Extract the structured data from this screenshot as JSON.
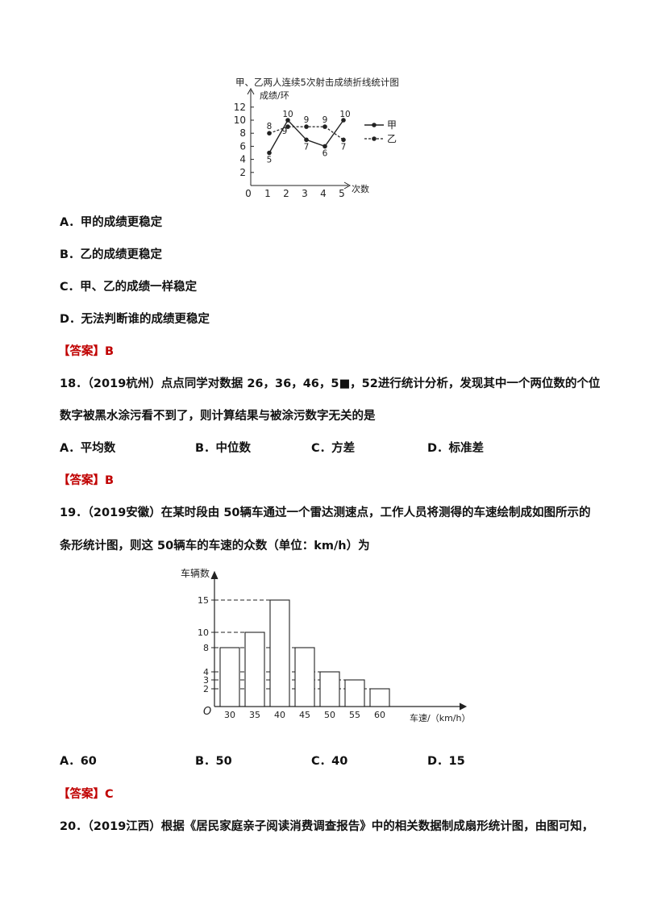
{
  "chart1": {
    "title": "甲、乙两人连续5次射击成绩折线统计图",
    "ylabel": "成绩/环",
    "xlabel": "次数",
    "y_ticks": [
      "12",
      "10",
      "8",
      "6",
      "4",
      "2"
    ],
    "x_ticks": [
      "0",
      "1",
      "2",
      "3",
      "4",
      "5"
    ],
    "legend": [
      "甲",
      "乙"
    ],
    "chart_data": {
      "type": "line",
      "x": [
        1,
        2,
        3,
        4,
        5
      ],
      "series": [
        {
          "name": "甲",
          "values": [
            5,
            10,
            7,
            6,
            10
          ]
        },
        {
          "name": "乙",
          "values": [
            8,
            9,
            9,
            9,
            7
          ]
        }
      ],
      "xlim": [
        0,
        6
      ],
      "ylim": [
        0,
        12
      ]
    },
    "point_labels_jia": [
      "5",
      "10",
      "7",
      "6",
      "10"
    ],
    "point_labels_yi": [
      "8",
      "9",
      "9",
      "9",
      "7"
    ]
  },
  "q17_options": {
    "a": "A．甲的成绩更稳定",
    "b": "B．乙的成绩更稳定",
    "c": "C．甲、乙的成绩一样稳定",
    "d": "D．无法判断谁的成绩更稳定"
  },
  "answer_label": "【答案】",
  "q17_answer": "B",
  "q18": {
    "line1": "18．（2019杭州）点点同学对数据 26，36，46，5■，52进行统计分析，发现其中一个两位数的个位",
    "line2": "数字被黑水涂污看不到了，则计算结果与被涂污数字无关的是",
    "options": [
      "A．平均数",
      "B．中位数",
      "C．方差",
      "D．标准差"
    ],
    "answer": "B"
  },
  "q19": {
    "line1": "19．（2019安徽）在某时段由 50辆车通过一个雷达测速点，工作人员将测得的车速绘制成如图所示的",
    "line2": "条形统计图，则这 50辆车的车速的众数（单位：km/h）为",
    "options": [
      "A．60",
      "B．50",
      "C．40",
      "D．15"
    ],
    "answer": "C"
  },
  "chart2": {
    "ylabel": "车辆数",
    "xlabel": "车速/（km/h）",
    "origin": "O",
    "y_ticks": [
      "15",
      "10",
      "8",
      "4",
      "3",
      "2"
    ],
    "chart_data": {
      "type": "bar",
      "categories": [
        "30",
        "35",
        "40",
        "45",
        "50",
        "55",
        "60"
      ],
      "values": [
        8,
        10,
        15,
        8,
        4,
        3,
        2
      ],
      "ylim": [
        0,
        17
      ]
    }
  },
  "q20": {
    "line1": "20．（2019江西）根据《居民家庭亲子阅读消费调查报告》中的相关数据制成扇形统计图，由图可知，"
  }
}
